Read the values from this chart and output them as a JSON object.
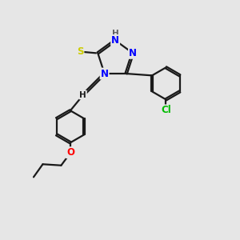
{
  "background_color": "#e6e6e6",
  "bond_color": "#1a1a1a",
  "atom_colors": {
    "N": "#0000ff",
    "S": "#cccc00",
    "O": "#ff0000",
    "Cl": "#00bb00",
    "H": "#606060",
    "C": "#1a1a1a"
  },
  "font_size": 8.5,
  "line_width": 1.6,
  "figsize": [
    3.0,
    3.0
  ],
  "dpi": 100,
  "xlim": [
    0,
    10
  ],
  "ylim": [
    0,
    10
  ]
}
